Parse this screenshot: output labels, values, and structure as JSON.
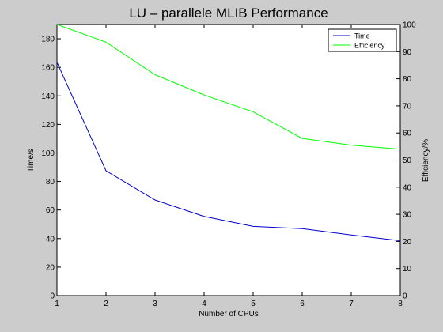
{
  "chart_data": {
    "type": "line",
    "title": "LU – parallele MLIB Performance",
    "xlabel": "Number of CPUs",
    "ylabel_left": "Time/s",
    "ylabel_right": "Efficiency/%",
    "x": [
      1,
      2,
      3,
      4,
      5,
      6,
      7,
      8
    ],
    "xlim": [
      1,
      8
    ],
    "ylim_left": [
      0,
      190
    ],
    "ylim_right": [
      0,
      100
    ],
    "x_ticks": [
      "1",
      "2",
      "3",
      "4",
      "5",
      "6",
      "7",
      "8"
    ],
    "y_ticks_left": [
      "0",
      "20",
      "40",
      "60",
      "80",
      "100",
      "120",
      "140",
      "160",
      "180"
    ],
    "y_ticks_right": [
      "0",
      "10",
      "20",
      "30",
      "40",
      "50",
      "60",
      "70",
      "80",
      "90",
      "100"
    ],
    "series": [
      {
        "name": "Time",
        "axis": "left",
        "color": "#0000cc",
        "values": [
          163.5,
          87.5,
          67,
          55.5,
          48.5,
          47,
          42.5,
          38.5
        ]
      },
      {
        "name": "Efficiency",
        "axis": "right",
        "color": "#00ff00",
        "values": [
          100,
          93.5,
          81.5,
          74,
          67.8,
          58,
          55.5,
          54
        ]
      }
    ],
    "legend_position": "top-right",
    "grid": false,
    "background_color": "#cccccc",
    "plot_background_color": "#ffffff"
  }
}
